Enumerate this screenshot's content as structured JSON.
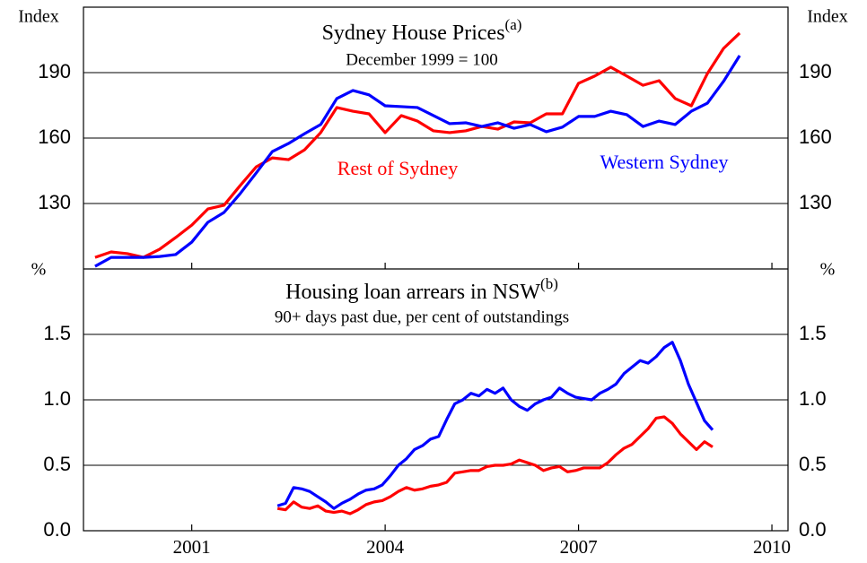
{
  "chart_data": [
    {
      "type": "line",
      "title": "Sydney House Prices",
      "title_note": "(a)",
      "subtitle": "December 1999 = 100",
      "ylabel": "Index",
      "xlim": [
        1999.82,
        2010.75
      ],
      "ylim": [
        100,
        220
      ],
      "yticks": [
        130,
        160,
        190
      ],
      "grid": true,
      "x": [
        2000,
        2000.25,
        2000.5,
        2000.75,
        2001,
        2001.25,
        2001.5,
        2001.75,
        2002,
        2002.25,
        2002.5,
        2002.75,
        2003,
        2003.25,
        2003.5,
        2003.75,
        2004,
        2004.25,
        2004.5,
        2004.75,
        2005,
        2005.25,
        2005.5,
        2005.75,
        2006,
        2006.25,
        2006.5,
        2006.75,
        2007,
        2007.25,
        2007.5,
        2007.75,
        2008,
        2008.25,
        2008.5,
        2008.75,
        2009,
        2009.25,
        2009.5,
        2009.75,
        2010
      ],
      "series": [
        {
          "name": "Rest of Sydney",
          "color": "#ff0000",
          "values": [
            105.3,
            107.8,
            107.0,
            105.3,
            109.0,
            114.4,
            120.1,
            127.5,
            129.2,
            138.2,
            146.8,
            150.9,
            150.1,
            154.6,
            162.5,
            174.0,
            172.3,
            171.1,
            162.5,
            170.3,
            167.8,
            163.3,
            162.5,
            163.3,
            165.3,
            164.1,
            167.4,
            167.0,
            171.1,
            171.1,
            185.1,
            188.4,
            192.5,
            188.4,
            184.2,
            186.3,
            178.1,
            174.8,
            189.6,
            201.1,
            208.1
          ]
        },
        {
          "name": "Western Sydney",
          "color": "#0000ff",
          "values": [
            101.2,
            105.3,
            105.3,
            105.3,
            105.7,
            106.6,
            112.3,
            121.4,
            125.9,
            134.5,
            144.0,
            153.8,
            157.5,
            162.0,
            166.2,
            178.1,
            181.8,
            179.8,
            174.8,
            174.4,
            174.0,
            170.3,
            166.6,
            167.0,
            165.3,
            167.0,
            164.5,
            166.2,
            162.9,
            165.0,
            169.9,
            169.9,
            172.3,
            170.7,
            165.3,
            167.8,
            166.2,
            172.3,
            176.0,
            186.0,
            197.8
          ]
        }
      ]
    },
    {
      "type": "line",
      "title": "Housing loan arrears in NSW",
      "title_note": "(b)",
      "subtitle": "90+ days past due, per cent of outstandings",
      "ylabel": "%",
      "xlim": [
        1999.82,
        2010.75
      ],
      "xticks": [
        {
          "value": 2001.5,
          "label": "2001"
        },
        {
          "value": 2004.5,
          "label": "2004"
        },
        {
          "value": 2007.5,
          "label": "2007"
        },
        {
          "value": 2010.5,
          "label": "2010"
        }
      ],
      "ylim": [
        0,
        2
      ],
      "yticks": [
        {
          "value": 0,
          "label": "0.0"
        },
        0.5,
        {
          "value": 1,
          "label": "1.0"
        },
        1.5
      ],
      "grid": true,
      "x": [
        2002.83,
        2002.955,
        2003.08,
        2003.205,
        2003.33,
        2003.455,
        2003.58,
        2003.705,
        2003.83,
        2003.955,
        2004.08,
        2004.205,
        2004.33,
        2004.455,
        2004.58,
        2004.705,
        2004.83,
        2004.955,
        2005.08,
        2005.205,
        2005.33,
        2005.455,
        2005.58,
        2005.705,
        2005.83,
        2005.955,
        2006.08,
        2006.205,
        2006.33,
        2006.455,
        2006.58,
        2006.705,
        2006.83,
        2006.955,
        2007.08,
        2007.205,
        2007.33,
        2007.455,
        2007.58,
        2007.705,
        2007.83,
        2007.955,
        2008.08,
        2008.205,
        2008.33,
        2008.455,
        2008.58,
        2008.705,
        2008.83,
        2008.955,
        2009.08,
        2009.205,
        2009.33,
        2009.455,
        2009.58
      ],
      "series": [
        {
          "color": "#ff0000",
          "values": [
            0.17,
            0.16,
            0.22,
            0.18,
            0.17,
            0.19,
            0.15,
            0.14,
            0.15,
            0.13,
            0.16,
            0.2,
            0.22,
            0.23,
            0.26,
            0.3,
            0.33,
            0.31,
            0.32,
            0.34,
            0.35,
            0.37,
            0.44,
            0.45,
            0.46,
            0.46,
            0.49,
            0.5,
            0.5,
            0.51,
            0.54,
            0.52,
            0.5,
            0.46,
            0.48,
            0.49,
            0.45,
            0.46,
            0.48,
            0.48,
            0.48,
            0.52,
            0.58,
            0.63,
            0.66,
            0.72,
            0.78,
            0.86,
            0.87,
            0.82,
            0.74,
            0.68,
            0.62,
            0.68,
            0.64
          ]
        },
        {
          "color": "#0000ff",
          "values": [
            0.19,
            0.21,
            0.33,
            0.32,
            0.3,
            0.26,
            0.22,
            0.17,
            0.21,
            0.24,
            0.28,
            0.31,
            0.32,
            0.35,
            0.42,
            0.5,
            0.55,
            0.62,
            0.65,
            0.7,
            0.72,
            0.85,
            0.97,
            1.0,
            1.05,
            1.03,
            1.08,
            1.05,
            1.09,
            1.0,
            0.95,
            0.92,
            0.97,
            1.0,
            1.02,
            1.09,
            1.05,
            1.02,
            1.01,
            1.0,
            1.05,
            1.08,
            1.12,
            1.2,
            1.25,
            1.3,
            1.28,
            1.33,
            1.4,
            1.44,
            1.3,
            1.12,
            0.98,
            0.84,
            0.77
          ]
        }
      ]
    }
  ]
}
